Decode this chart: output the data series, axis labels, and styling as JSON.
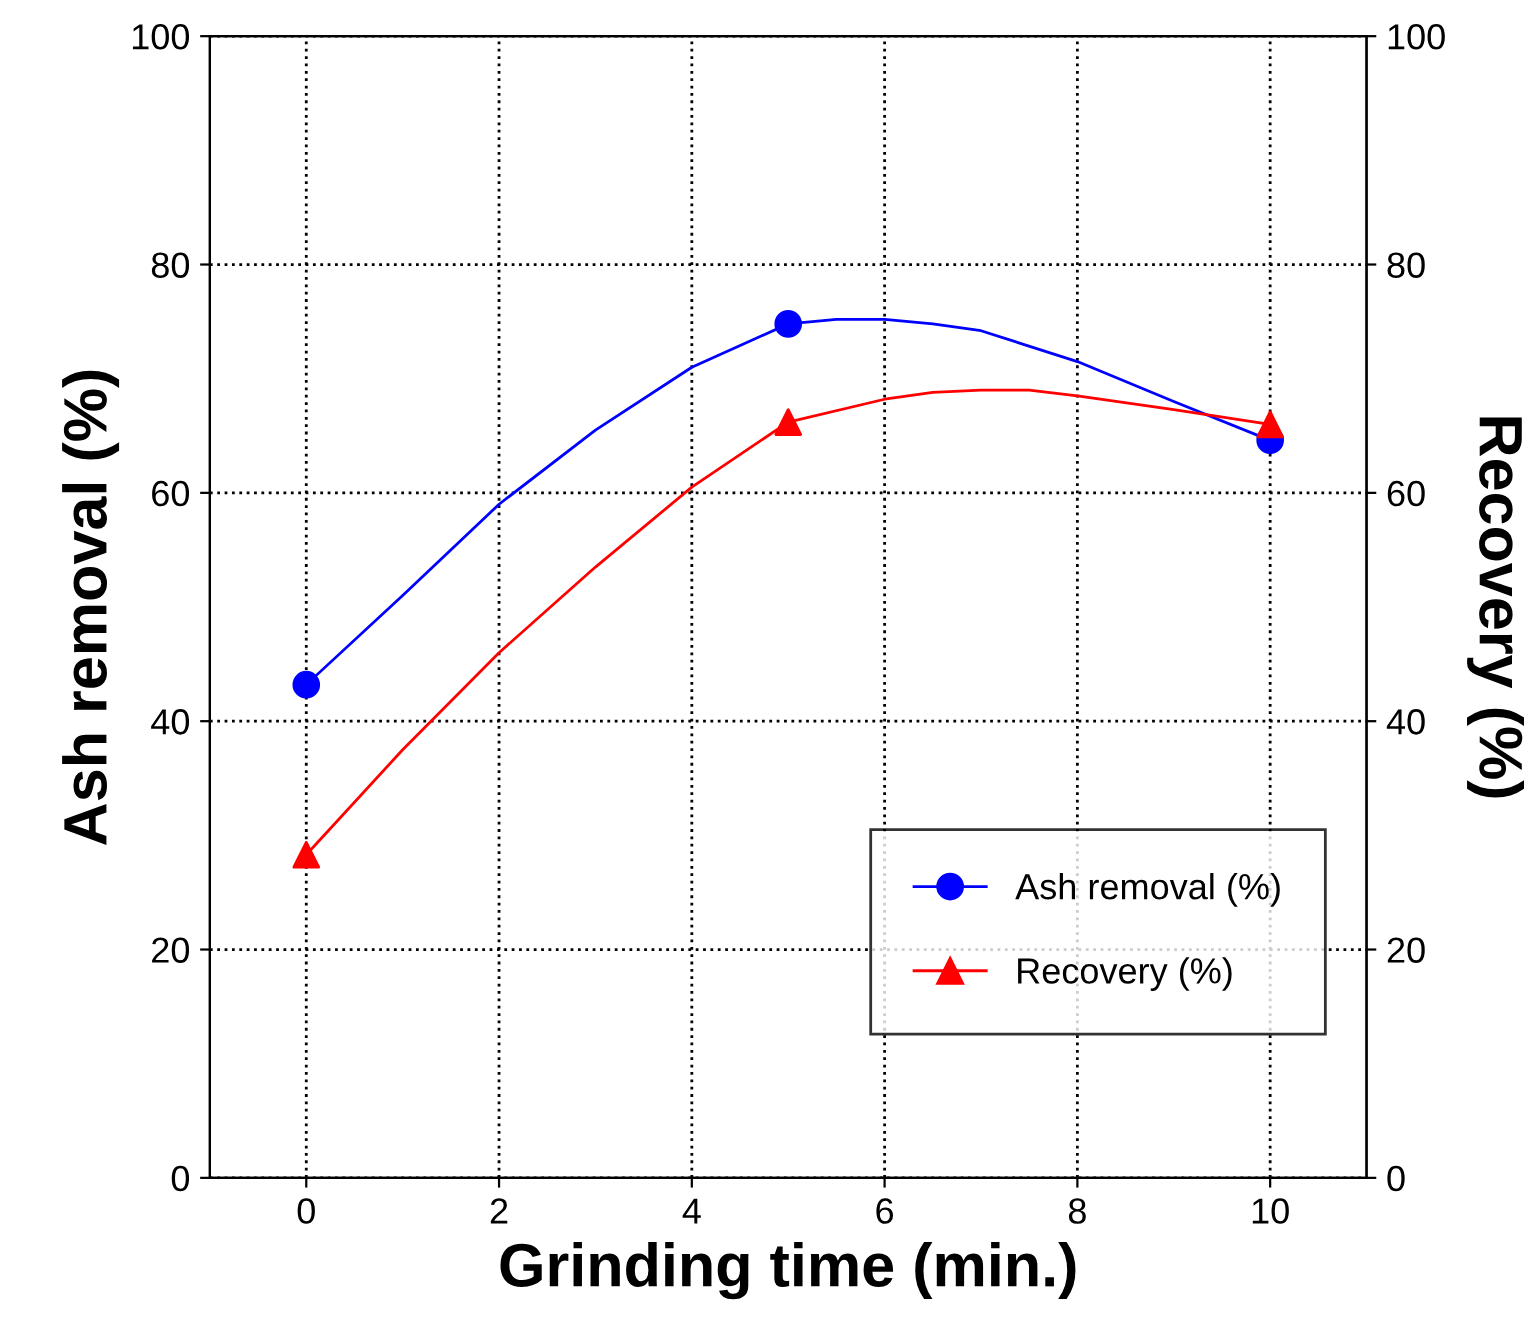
{
  "chart_data": {
    "type": "line",
    "xlabel": "Grinding time (min.)",
    "ylabel": "Ash removal (%)",
    "y2label": "Recovery (%)",
    "x": [
      0,
      5,
      10
    ],
    "series": [
      {
        "color": "#0000ff",
        "x": [
          0,
          1,
          2,
          3,
          4,
          5,
          5.5,
          6,
          6.5,
          7,
          8,
          9,
          10
        ],
        "values": [
          43.2,
          51,
          59,
          65.5,
          71,
          74.8,
          75.2,
          75.2,
          74.8,
          74.2,
          71.5,
          68,
          64.6
        ]
      },
      {
        "color": "#ff0000",
        "x": [
          0,
          1,
          2,
          3,
          4,
          5,
          6,
          6.5,
          7,
          7.5,
          8,
          9,
          10
        ],
        "values": [
          28.3,
          37.5,
          46,
          53.5,
          60.5,
          66.2,
          68.2,
          68.8,
          69,
          69,
          68.5,
          67.3,
          66.0
        ]
      },
      {
        "type": "scatter",
        "name": "Ash removal (%)",
        "color": "#0000ff",
        "values": [
          43.2,
          74.8,
          64.6
        ],
        "marker": "circle"
      },
      {
        "type": "scatter",
        "name": "Recovery (%)",
        "color": "#ff0000",
        "values": [
          28.3,
          66.2,
          66.0
        ],
        "marker": "triangle"
      }
    ],
    "xlim": [
      -1,
      11
    ],
    "xticks": [
      0,
      2,
      4,
      6,
      8,
      10
    ],
    "ylim": [
      0,
      100
    ],
    "yticks": [
      0,
      20,
      40,
      60,
      80,
      100
    ],
    "y2lim": [
      0,
      100
    ],
    "y2ticks": [
      0,
      20,
      40,
      60,
      80,
      100
    ],
    "grid": true,
    "legend": "bottom right",
    "line_style": "solid"
  }
}
